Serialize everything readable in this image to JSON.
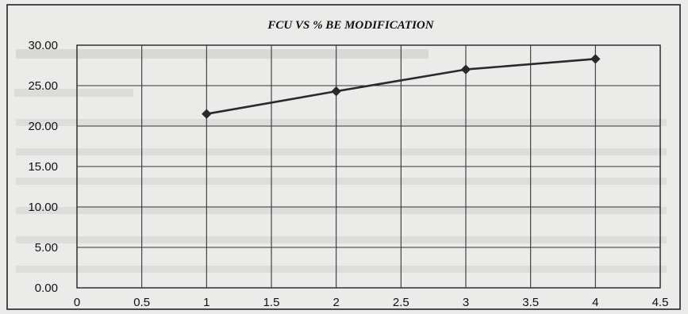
{
  "chart_data": {
    "type": "line",
    "title": "FCU VS % BE MODIFICATION",
    "xlabel": "",
    "ylabel": "",
    "xlim": [
      0,
      4.5
    ],
    "ylim": [
      0,
      30
    ],
    "x_ticks": [
      "0",
      "0.5",
      "1",
      "1.5",
      "2",
      "2.5",
      "3",
      "3.5",
      "4",
      "4.5"
    ],
    "y_ticks": [
      "0.00",
      "5.00",
      "10.00",
      "15.00",
      "20.00",
      "25.00",
      "30.00"
    ],
    "grid": true,
    "legend": "none",
    "series": [
      {
        "x": [
          1,
          2,
          3,
          4
        ],
        "values": [
          21.5,
          24.3,
          27.0,
          28.3
        ],
        "color": "#2a2a2a",
        "marker": "diamond"
      }
    ]
  }
}
